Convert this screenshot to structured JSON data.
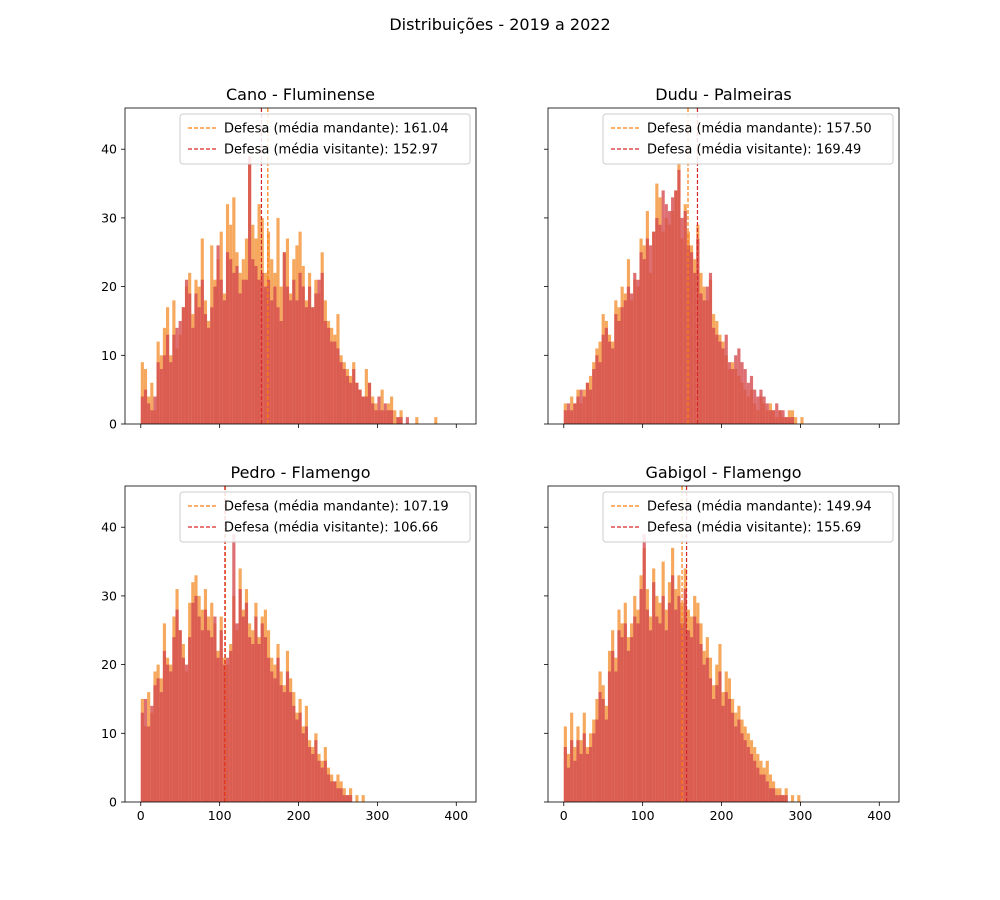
{
  "figure": {
    "suptitle": "Distribuições - 2019 a 2022"
  },
  "colors": {
    "home": "#ff7f0e",
    "away": "#d62728",
    "home_fill": "#f5a04d",
    "away_fill": "#d54a4f",
    "overlap": "#e24a33"
  },
  "chart_data": [
    {
      "type": "bar",
      "title": "Cano - Fluminense",
      "xlabel": "",
      "ylabel": "",
      "xlim": [
        -20,
        425
      ],
      "ylim": [
        0,
        46
      ],
      "xticks": [
        "0",
        "100",
        "200",
        "300",
        "400"
      ],
      "yticks": [
        "0",
        "10",
        "20",
        "30",
        "40"
      ],
      "bin_start": 0,
      "bin_width": 4,
      "series": [
        {
          "values": [
            9,
            8,
            4,
            6,
            2,
            12,
            10,
            14,
            17,
            10,
            18,
            11,
            13,
            17,
            20,
            22,
            16,
            21,
            20,
            27,
            18,
            15,
            26,
            21,
            24,
            28,
            19,
            32,
            29,
            33,
            25,
            22,
            24,
            27,
            38,
            29,
            27,
            32,
            30,
            22,
            28,
            24,
            22,
            30,
            20,
            25,
            27,
            19,
            24,
            26,
            28,
            23,
            18,
            22,
            17,
            21,
            19,
            25,
            18,
            15,
            14,
            13,
            16,
            10,
            9,
            8,
            7,
            9,
            6,
            5,
            4,
            8,
            6,
            4,
            3,
            2,
            5,
            2,
            3,
            4,
            2,
            1,
            2,
            0,
            0,
            0,
            0,
            1,
            0,
            0,
            0,
            0,
            0,
            1,
            0,
            0,
            0,
            0,
            0,
            0,
            0
          ]
        },
        {
          "values": [
            4,
            5,
            3,
            2,
            4,
            9,
            8,
            10,
            13,
            9,
            13,
            14,
            15,
            17,
            21,
            19,
            14,
            19,
            17,
            21,
            16,
            14,
            17,
            20,
            26,
            21,
            18,
            25,
            24,
            22,
            23,
            19,
            21,
            21,
            39,
            24,
            23,
            21,
            22,
            20,
            21,
            18,
            20,
            17,
            15,
            25,
            20,
            18,
            21,
            18,
            22,
            20,
            17,
            20,
            17,
            19,
            21,
            22,
            15,
            14,
            12,
            12,
            11,
            9,
            8,
            7,
            6,
            8,
            6,
            5,
            4,
            4,
            6,
            3,
            2,
            4,
            2,
            3,
            2,
            2,
            0,
            1,
            1,
            0,
            1,
            0,
            0,
            0,
            0,
            0,
            0,
            0,
            0,
            0,
            0,
            0,
            0,
            0,
            0,
            0,
            0
          ]
        }
      ],
      "mean_lines": [
        161.04,
        152.97
      ],
      "legend_labels": [
        "Defesa (média mandante): 161.04",
        "Defesa (média visitante): 152.97"
      ],
      "legend_loc": "upper right"
    },
    {
      "type": "bar",
      "title": "Dudu - Palmeiras",
      "xlabel": "",
      "ylabel": "",
      "xlim": [
        -20,
        425
      ],
      "ylim": [
        0,
        46
      ],
      "xticks": [
        "0",
        "100",
        "200",
        "300",
        "400"
      ],
      "yticks": [
        "0",
        "10",
        "20",
        "30",
        "40"
      ],
      "bin_start": 0,
      "bin_width": 4,
      "series": [
        {
          "values": [
            3,
            2,
            4,
            3,
            5,
            3,
            5,
            6,
            7,
            9,
            11,
            12,
            16,
            15,
            13,
            12,
            18,
            17,
            20,
            19,
            24,
            18,
            21,
            20,
            27,
            26,
            31,
            22,
            28,
            35,
            33,
            28,
            30,
            29,
            31,
            34,
            38,
            27,
            32,
            28,
            26,
            24,
            29,
            22,
            20,
            18,
            21,
            16,
            15,
            13,
            12,
            10,
            8,
            9,
            8,
            7,
            6,
            5,
            4,
            5,
            3,
            2,
            4,
            3,
            2,
            3,
            2,
            1,
            2,
            1,
            1,
            2,
            2,
            1,
            0,
            1,
            0,
            0,
            0,
            0,
            0,
            0,
            0,
            0,
            0,
            0,
            0,
            0,
            0,
            0,
            0
          ]
        },
        {
          "values": [
            2,
            3,
            2,
            3,
            4,
            5,
            4,
            6,
            5,
            8,
            10,
            9,
            13,
            14,
            12,
            11,
            16,
            15,
            17,
            18,
            20,
            19,
            22,
            21,
            25,
            24,
            27,
            26,
            28,
            30,
            29,
            34,
            32,
            31,
            33,
            34,
            37,
            30,
            31,
            26,
            25,
            22,
            27,
            19,
            18,
            20,
            22,
            14,
            13,
            12,
            11,
            13,
            9,
            8,
            10,
            11,
            9,
            8,
            6,
            7,
            5,
            4,
            5,
            4,
            3,
            2,
            2,
            3,
            2,
            2,
            1,
            1,
            1,
            0,
            0,
            0,
            0,
            0,
            0,
            0,
            0,
            0,
            0,
            0,
            0,
            0,
            0,
            0,
            0,
            0,
            0
          ]
        }
      ],
      "mean_lines": [
        157.5,
        169.49
      ],
      "legend_labels": [
        "Defesa (média mandante): 157.50",
        "Defesa (média visitante): 169.49"
      ],
      "legend_loc": "upper right"
    },
    {
      "type": "bar",
      "title": "Pedro - Flamengo",
      "xlabel": "",
      "ylabel": "",
      "xlim": [
        -20,
        425
      ],
      "ylim": [
        0,
        46
      ],
      "xticks": [
        "0",
        "100",
        "200",
        "300",
        "400"
      ],
      "yticks": [
        "0",
        "10",
        "20",
        "30",
        "40"
      ],
      "bin_start": 0,
      "bin_width": 4,
      "series": [
        {
          "values": [
            15,
            11,
            16,
            13,
            19,
            20,
            18,
            26,
            21,
            20,
            27,
            31,
            25,
            23,
            19,
            29,
            32,
            33,
            30,
            28,
            31,
            27,
            29,
            26,
            22,
            27,
            21,
            20,
            23,
            30,
            25,
            34,
            28,
            31,
            26,
            25,
            29,
            24,
            27,
            28,
            25,
            21,
            20,
            23,
            19,
            17,
            22,
            18,
            16,
            13,
            15,
            11,
            14,
            9,
            8,
            10,
            7,
            6,
            8,
            5,
            4,
            3,
            4,
            3,
            2,
            1,
            2,
            0,
            1,
            0,
            1,
            0,
            0,
            0,
            0,
            0,
            0,
            0,
            0,
            0,
            0,
            0,
            0,
            0,
            0,
            0,
            0,
            0,
            0,
            0,
            0
          ]
        },
        {
          "values": [
            13,
            15,
            11,
            14,
            17,
            18,
            16,
            22,
            20,
            19,
            24,
            28,
            25,
            21,
            20,
            24,
            29,
            30,
            27,
            25,
            28,
            25,
            24,
            27,
            21,
            25,
            20,
            21,
            22,
            39,
            26,
            31,
            27,
            29,
            24,
            23,
            27,
            23,
            26,
            24,
            21,
            19,
            18,
            21,
            17,
            16,
            19,
            16,
            14,
            12,
            13,
            10,
            11,
            8,
            7,
            9,
            6,
            5,
            6,
            4,
            3,
            3,
            2,
            2,
            1,
            1,
            1,
            0,
            0,
            0,
            0,
            0,
            0,
            0,
            0,
            0,
            0,
            0,
            0,
            0,
            0,
            0,
            0,
            0,
            0,
            0,
            0,
            0,
            0,
            0,
            0
          ]
        }
      ],
      "mean_lines": [
        107.19,
        106.66
      ],
      "legend_labels": [
        "Defesa (média mandante): 107.19",
        "Defesa (média visitante): 106.66"
      ],
      "legend_loc": "upper right"
    },
    {
      "type": "bar",
      "title": "Gabigol - Flamengo",
      "xlabel": "",
      "ylabel": "",
      "xlim": [
        -20,
        425
      ],
      "ylim": [
        0,
        46
      ],
      "xticks": [
        "0",
        "100",
        "200",
        "300",
        "400"
      ],
      "yticks": [
        "0",
        "10",
        "20",
        "30",
        "40"
      ],
      "bin_start": 0,
      "bin_width": 4,
      "series": [
        {
          "values": [
            11,
            7,
            13,
            8,
            11,
            9,
            13,
            8,
            10,
            12,
            15,
            19,
            17,
            14,
            22,
            25,
            21,
            28,
            26,
            29,
            24,
            26,
            30,
            28,
            33,
            37,
            31,
            27,
            34,
            30,
            29,
            35,
            28,
            32,
            37,
            31,
            33,
            29,
            34,
            28,
            27,
            30,
            29,
            26,
            22,
            24,
            21,
            17,
            20,
            23,
            16,
            19,
            18,
            15,
            13,
            14,
            12,
            11,
            10,
            9,
            8,
            7,
            6,
            5,
            6,
            4,
            3,
            2,
            2,
            1,
            2,
            0,
            1,
            0,
            1,
            0,
            0,
            0,
            0,
            0,
            0,
            0,
            0,
            0,
            0,
            0,
            0,
            0,
            0,
            0,
            0
          ]
        },
        {
          "values": [
            8,
            5,
            9,
            6,
            9,
            7,
            10,
            7,
            8,
            10,
            12,
            16,
            15,
            12,
            19,
            22,
            19,
            25,
            24,
            26,
            22,
            24,
            27,
            26,
            31,
            39,
            28,
            25,
            32,
            27,
            26,
            30,
            25,
            29,
            33,
            28,
            30,
            26,
            31,
            25,
            24,
            27,
            26,
            23,
            20,
            21,
            18,
            15,
            17,
            19,
            14,
            16,
            15,
            13,
            11,
            12,
            10,
            9,
            8,
            7,
            6,
            5,
            4,
            4,
            3,
            2,
            2,
            1,
            1,
            1,
            1,
            0,
            0,
            0,
            0,
            0,
            0,
            0,
            0,
            0,
            0,
            0,
            0,
            0,
            0,
            0,
            0,
            0,
            0,
            0,
            0
          ]
        }
      ],
      "mean_lines": [
        149.94,
        155.69
      ],
      "legend_labels": [
        "Defesa (média mandante): 149.94",
        "Defesa (média visitante): 155.69"
      ],
      "legend_loc": "upper right"
    }
  ]
}
